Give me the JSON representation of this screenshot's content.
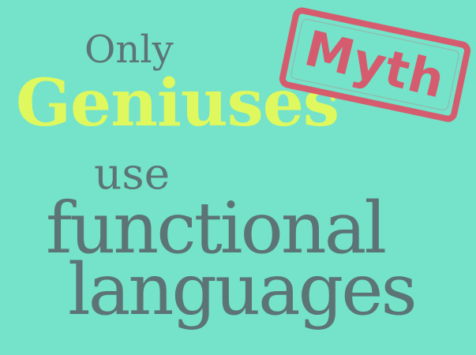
{
  "poster": {
    "line1": "Only",
    "line2": "Geniuses",
    "line3": "use",
    "line4": "functional",
    "line5": "languages"
  },
  "stamp": {
    "label": "Myth"
  },
  "colors": {
    "background": "#74e3c9",
    "primary_text": "#5c7475",
    "highlight_text": "#dff85e",
    "stamp": "#d9576b"
  }
}
